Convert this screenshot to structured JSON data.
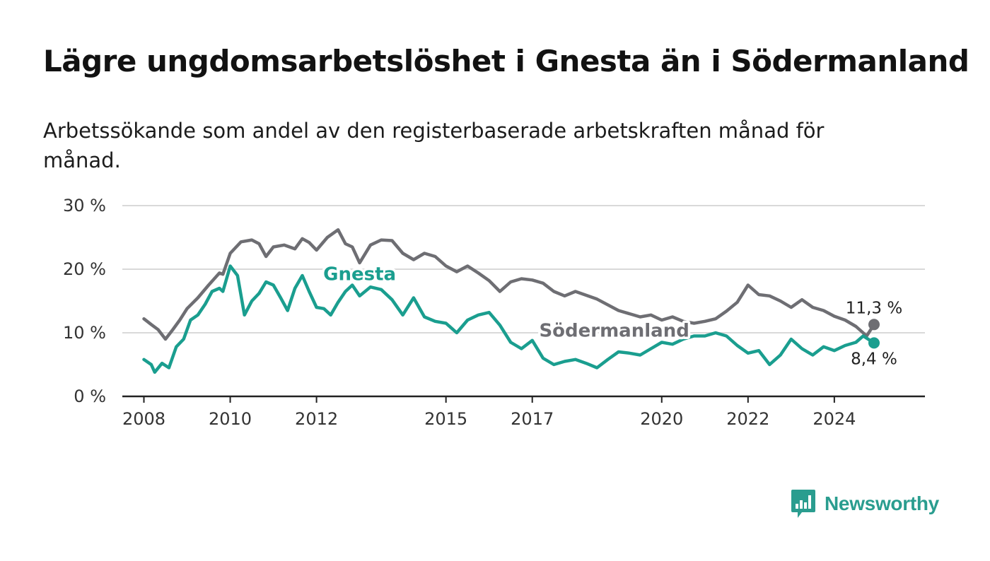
{
  "header": {
    "title": "Lägre ungdomsarbetslöshet i Gnesta än i Södermanland",
    "subtitle": "Arbetssökande som andel av den registerbaserade arbetskraften månad för månad."
  },
  "brand": {
    "name": "Newsworthy",
    "color": "#2a9d8f"
  },
  "chart_data": {
    "type": "line",
    "ylim": [
      0,
      30
    ],
    "yticks": [
      0,
      10,
      20,
      30
    ],
    "ytick_labels": [
      "0 %",
      "10 %",
      "20 %",
      "30 %"
    ],
    "xlim": [
      2007.5,
      2026.1
    ],
    "xticks": [
      2008,
      2010,
      2012,
      2015,
      2017,
      2020,
      2022,
      2024
    ],
    "xtick_labels": [
      "2008",
      "2010",
      "2012",
      "2015",
      "2017",
      "2020",
      "2022",
      "2024"
    ],
    "grid": true,
    "legend": "inline labels",
    "series": [
      {
        "name": "Södermanland",
        "color": "#6e6e73",
        "end_label": "11,3 %",
        "x": [
          2008.0,
          2008.17,
          2008.33,
          2008.5,
          2008.67,
          2008.83,
          2009.0,
          2009.25,
          2009.5,
          2009.75,
          2009.83,
          2010.0,
          2010.25,
          2010.5,
          2010.67,
          2010.83,
          2011.0,
          2011.25,
          2011.5,
          2011.67,
          2011.83,
          2012.0,
          2012.25,
          2012.5,
          2012.67,
          2012.83,
          2013.0,
          2013.25,
          2013.5,
          2013.75,
          2014.0,
          2014.25,
          2014.5,
          2014.75,
          2015.0,
          2015.25,
          2015.5,
          2015.75,
          2016.0,
          2016.25,
          2016.5,
          2016.75,
          2017.0,
          2017.25,
          2017.5,
          2017.75,
          2018.0,
          2018.5,
          2019.0,
          2019.5,
          2019.75,
          2020.0,
          2020.25,
          2020.5,
          2020.75,
          2021.0,
          2021.25,
          2021.5,
          2021.75,
          2022.0,
          2022.25,
          2022.5,
          2022.75,
          2023.0,
          2023.25,
          2023.5,
          2023.75,
          2024.0,
          2024.25,
          2024.5,
          2024.75,
          2024.92
        ],
        "values": [
          12.2,
          11.3,
          10.5,
          9.0,
          10.5,
          12.0,
          13.8,
          15.5,
          17.5,
          19.4,
          19.2,
          22.5,
          24.3,
          24.6,
          24.0,
          22.0,
          23.5,
          23.8,
          23.2,
          24.8,
          24.2,
          23.0,
          25.0,
          26.2,
          24.0,
          23.5,
          21.0,
          23.8,
          24.6,
          24.5,
          22.5,
          21.5,
          22.5,
          22.0,
          20.5,
          19.6,
          20.5,
          19.4,
          18.2,
          16.5,
          18.0,
          18.5,
          18.3,
          17.8,
          16.5,
          15.8,
          16.5,
          15.3,
          13.5,
          12.5,
          12.8,
          12.0,
          12.5,
          11.8,
          11.5,
          11.8,
          12.2,
          13.4,
          14.8,
          17.5,
          16.0,
          15.8,
          15.0,
          14.0,
          15.2,
          14.0,
          13.5,
          12.6,
          12.0,
          11.0,
          9.5,
          11.3
        ]
      },
      {
        "name": "Gnesta",
        "color": "#1a9e8f",
        "end_label": "8,4 %",
        "x": [
          2008.0,
          2008.17,
          2008.25,
          2008.42,
          2008.58,
          2008.75,
          2008.92,
          2009.08,
          2009.25,
          2009.42,
          2009.58,
          2009.75,
          2009.83,
          2010.0,
          2010.17,
          2010.33,
          2010.5,
          2010.67,
          2010.83,
          2011.0,
          2011.17,
          2011.33,
          2011.5,
          2011.67,
          2011.83,
          2012.0,
          2012.17,
          2012.33,
          2012.5,
          2012.67,
          2012.83,
          2013.0,
          2013.25,
          2013.5,
          2013.75,
          2014.0,
          2014.25,
          2014.5,
          2014.75,
          2015.0,
          2015.25,
          2015.5,
          2015.75,
          2016.0,
          2016.25,
          2016.5,
          2016.75,
          2017.0,
          2017.25,
          2017.5,
          2017.75,
          2018.0,
          2018.25,
          2018.5,
          2018.75,
          2019.0,
          2019.25,
          2019.5,
          2019.75,
          2020.0,
          2020.25,
          2020.5,
          2020.75,
          2021.0,
          2021.25,
          2021.5,
          2021.75,
          2022.0,
          2022.25,
          2022.5,
          2022.75,
          2023.0,
          2023.25,
          2023.5,
          2023.75,
          2024.0,
          2024.25,
          2024.5,
          2024.67,
          2024.83,
          2024.92
        ],
        "values": [
          5.8,
          5.0,
          3.8,
          5.2,
          4.5,
          7.8,
          9.0,
          12.0,
          12.8,
          14.5,
          16.5,
          17.0,
          16.5,
          20.5,
          19.0,
          12.8,
          15.0,
          16.2,
          18.0,
          17.5,
          15.5,
          13.5,
          17.0,
          19.0,
          16.5,
          14.0,
          13.8,
          12.8,
          14.8,
          16.5,
          17.5,
          15.8,
          17.2,
          16.8,
          15.2,
          12.8,
          15.5,
          12.5,
          11.8,
          11.5,
          10.0,
          12.0,
          12.8,
          13.2,
          11.2,
          8.5,
          7.5,
          8.8,
          6.0,
          5.0,
          5.5,
          5.8,
          5.2,
          4.5,
          5.8,
          7.0,
          6.8,
          6.5,
          7.5,
          8.5,
          8.2,
          9.0,
          9.5,
          9.5,
          10.0,
          9.5,
          8.0,
          6.8,
          7.2,
          5.0,
          6.5,
          9.0,
          7.5,
          6.5,
          7.8,
          7.2,
          8.0,
          8.5,
          9.5,
          8.8,
          8.4
        ]
      }
    ]
  }
}
